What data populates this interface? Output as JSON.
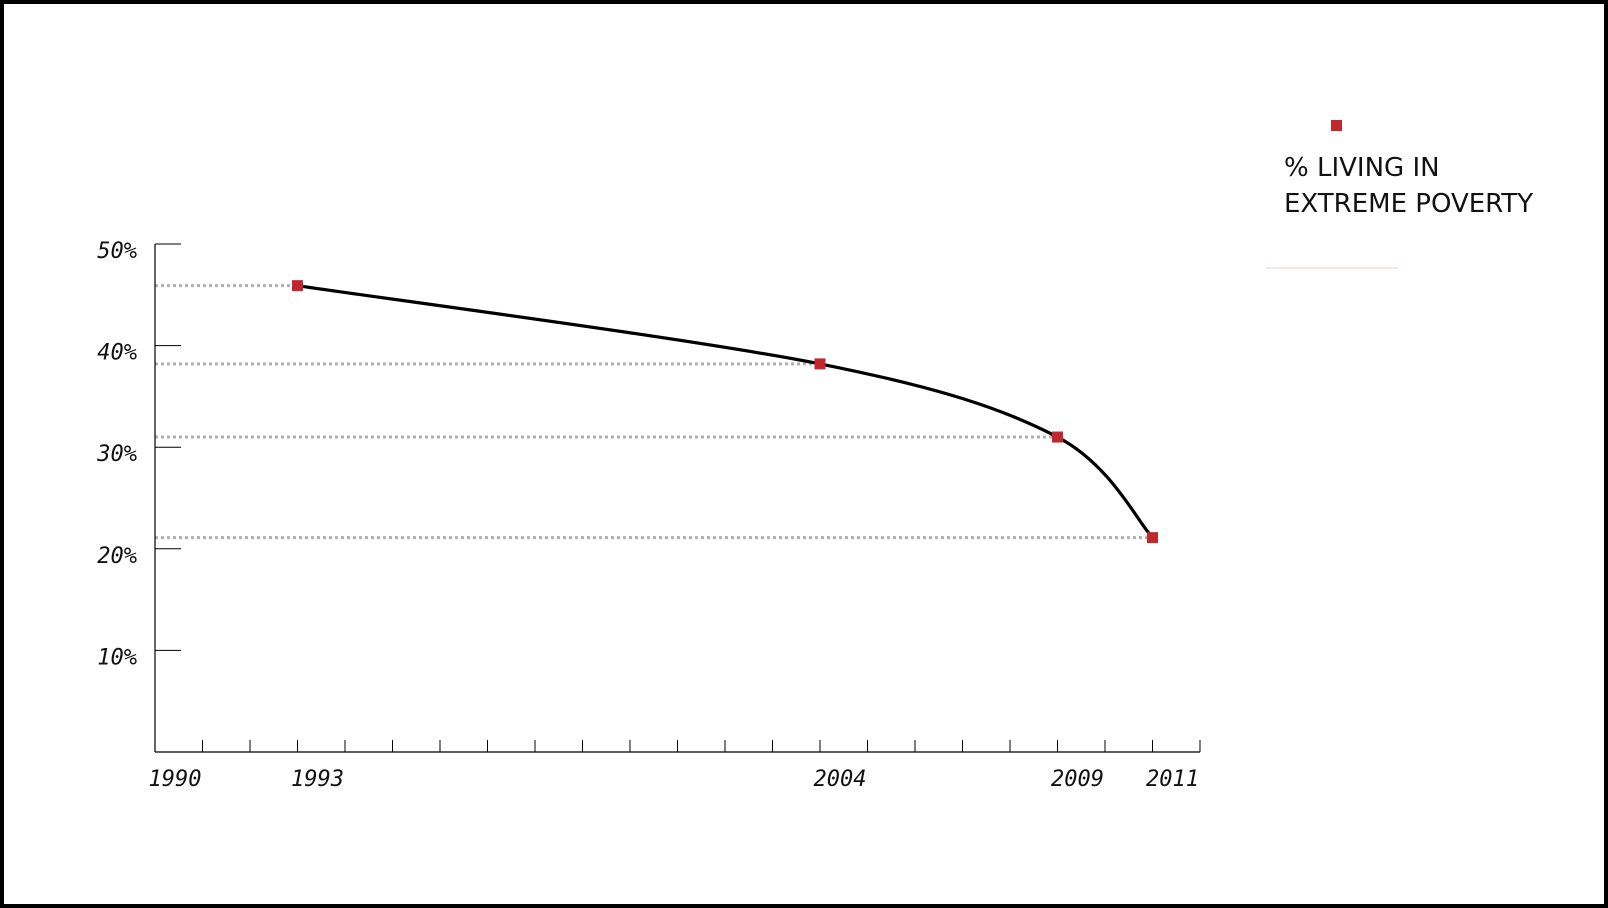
{
  "chart_data": {
    "type": "line",
    "title": "",
    "xlabel": "",
    "ylabel": "",
    "x_ticks": [
      "1990",
      "1993",
      "2004",
      "2009",
      "2011"
    ],
    "y_ticks": [
      "10%",
      "20%",
      "30%",
      "40%",
      "50%"
    ],
    "xlim": [
      1990,
      2012
    ],
    "ylim": [
      0,
      50
    ],
    "series": [
      {
        "name": "% LIVING IN EXTREME POVERTY",
        "x": [
          1993,
          2004,
          2009,
          2011
        ],
        "y": [
          45.9,
          38.2,
          31.0,
          21.1
        ]
      }
    ],
    "legend_position": "top-right",
    "grid": false,
    "colors": {
      "line": "#000000",
      "marker": "#c0282d",
      "guide": "#b0b0b0",
      "legend_rule": "#f2c9cb"
    }
  },
  "legend": {
    "line1": "% LIVING IN",
    "line2": "EXTREME POVERTY"
  }
}
